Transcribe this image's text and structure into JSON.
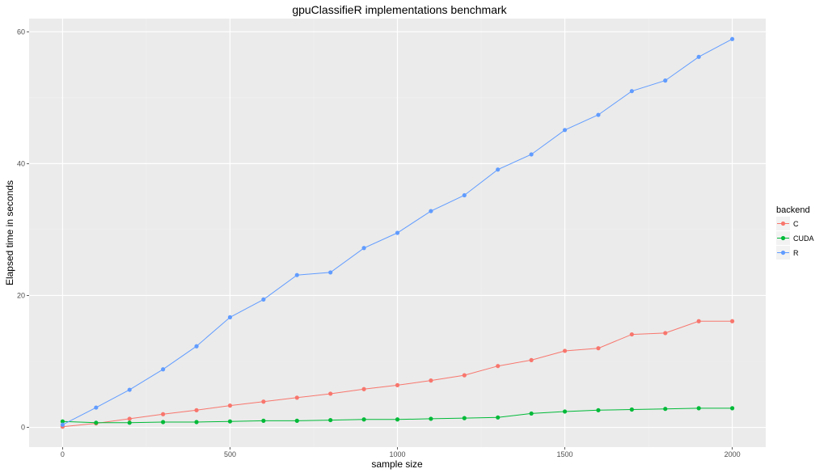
{
  "chart_data": {
    "type": "line",
    "title": "gpuClassifieR implementations benchmark",
    "xlabel": "sample size",
    "ylabel": "Elapsed time in seconds",
    "xlim": [
      -100,
      2100
    ],
    "ylim": [
      -3,
      62
    ],
    "xticks": [
      0,
      500,
      1000,
      1500,
      2000
    ],
    "yticks": [
      0,
      20,
      40,
      60
    ],
    "grid": true,
    "legend": {
      "title": "backend",
      "position": "right"
    },
    "x": [
      0,
      100,
      200,
      300,
      400,
      500,
      600,
      700,
      800,
      900,
      1000,
      1100,
      1200,
      1300,
      1400,
      1500,
      1600,
      1700,
      1800,
      1900,
      2000
    ],
    "series": [
      {
        "name": "C",
        "color": "#F8766D",
        "values": [
          0.1,
          0.6,
          1.3,
          2.0,
          2.6,
          3.3,
          3.9,
          4.5,
          5.1,
          5.8,
          6.4,
          7.1,
          7.9,
          9.3,
          10.2,
          11.6,
          12.0,
          14.1,
          14.3,
          16.1,
          16.1
        ]
      },
      {
        "name": "CUDA",
        "color": "#00BA38",
        "values": [
          0.9,
          0.7,
          0.7,
          0.8,
          0.8,
          0.9,
          1.0,
          1.0,
          1.1,
          1.2,
          1.2,
          1.3,
          1.4,
          1.5,
          2.1,
          2.4,
          2.6,
          2.7,
          2.8,
          2.9,
          2.9
        ]
      },
      {
        "name": "R",
        "color": "#619CFF",
        "values": [
          0.4,
          3.0,
          5.7,
          8.8,
          12.3,
          16.7,
          19.4,
          23.1,
          23.5,
          27.2,
          29.5,
          32.8,
          35.2,
          39.1,
          41.4,
          45.1,
          47.4,
          51.0,
          52.6,
          56.2,
          58.9
        ]
      }
    ]
  }
}
